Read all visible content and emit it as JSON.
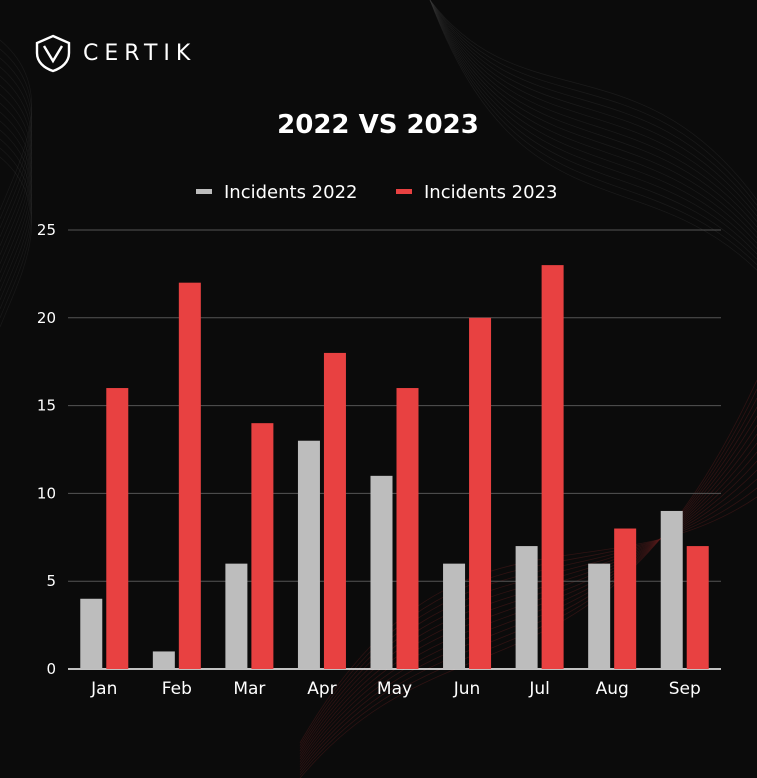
{
  "brand": {
    "name": "CERTIK"
  },
  "colors": {
    "background": "#0b0b0b",
    "series_2022": "#bdbdbd",
    "series_2023": "#e84141",
    "grid": "#555555",
    "text": "#ffffff"
  },
  "chart_data": {
    "type": "bar",
    "title": "2022 VS 2023",
    "categories": [
      "Jan",
      "Feb",
      "Mar",
      "Apr",
      "May",
      "Jun",
      "Jul",
      "Aug",
      "Sep"
    ],
    "series": [
      {
        "name": "Incidents 2022",
        "values": [
          4,
          1,
          6,
          13,
          11,
          6,
          7,
          6,
          9
        ]
      },
      {
        "name": "Incidents 2023",
        "values": [
          16,
          22,
          14,
          18,
          16,
          20,
          23,
          8,
          7
        ]
      }
    ],
    "ylim": [
      0,
      25
    ],
    "yticks": [
      0,
      5,
      10,
      15,
      20,
      25
    ],
    "legend": "top-center",
    "grid": true
  }
}
